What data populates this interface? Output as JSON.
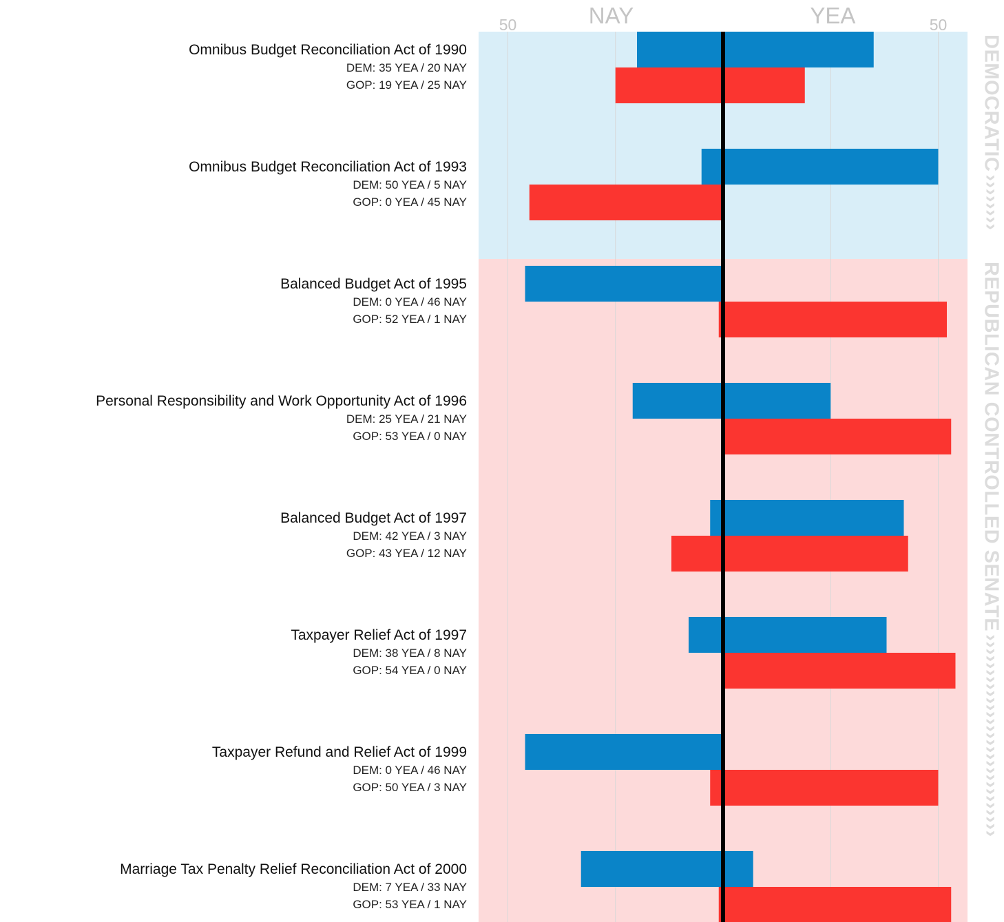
{
  "colors": {
    "dem_bar": "#0a84c8",
    "gop_bar": "#fb3530",
    "dem_controlled_bg": "#d9eef8",
    "gop_controlled_bg": "#fddada",
    "midline": "#000000",
    "gridline": "#d8d8d8",
    "muted_text": "#c4c4c4"
  },
  "chart_data": {
    "type": "bar",
    "orientation": "horizontal-diverging",
    "axis_words": {
      "left": "NAY",
      "right": "YEA"
    },
    "ticks": {
      "nay": [
        "50"
      ],
      "yea": [
        "50"
      ]
    },
    "xlim": [
      -55,
      55
    ],
    "grid": true,
    "control_periods": [
      {
        "label": "DEMOCRATIC",
        "party": "dem",
        "bills": [
          0,
          1
        ]
      },
      {
        "label": "REPUBLICAN CONTROLLED SENATE",
        "party": "gop",
        "bills": [
          2,
          3,
          4,
          5,
          6,
          7
        ]
      }
    ],
    "bills": [
      {
        "title": "Omnibus Budget Reconciliation Act of 1990",
        "dem_text": "DEM: 35 YEA / 20 NAY",
        "gop_text": "GOP: 19 YEA / 25 NAY",
        "dem": {
          "yea": 35,
          "nay": 20
        },
        "gop": {
          "yea": 19,
          "nay": 25
        }
      },
      {
        "title": "Omnibus Budget Reconciliation Act of 1993",
        "dem_text": "DEM: 50 YEA / 5 NAY",
        "gop_text": "GOP: 0 YEA / 45 NAY",
        "dem": {
          "yea": 50,
          "nay": 5
        },
        "gop": {
          "yea": 0,
          "nay": 45
        }
      },
      {
        "title": "Balanced Budget Act of 1995",
        "dem_text": "DEM: 0 YEA / 46 NAY",
        "gop_text": "GOP: 52 YEA / 1 NAY",
        "dem": {
          "yea": 0,
          "nay": 46
        },
        "gop": {
          "yea": 52,
          "nay": 1
        }
      },
      {
        "title": "Personal Responsibility and Work Opportunity Act of 1996",
        "dem_text": "DEM: 25 YEA / 21 NAY",
        "gop_text": "GOP: 53 YEA / 0 NAY",
        "dem": {
          "yea": 25,
          "nay": 21
        },
        "gop": {
          "yea": 53,
          "nay": 0
        }
      },
      {
        "title": "Balanced Budget Act of 1997",
        "dem_text": "DEM: 42 YEA / 3 NAY",
        "gop_text": "GOP: 43 YEA / 12 NAY",
        "dem": {
          "yea": 42,
          "nay": 3
        },
        "gop": {
          "yea": 43,
          "nay": 12
        }
      },
      {
        "title": "Taxpayer Relief Act of 1997",
        "dem_text": "DEM: 38 YEA / 8 NAY",
        "gop_text": "GOP: 54 YEA / 0 NAY",
        "dem": {
          "yea": 38,
          "nay": 8
        },
        "gop": {
          "yea": 54,
          "nay": 0
        }
      },
      {
        "title": "Taxpayer Refund and Relief Act of 1999",
        "dem_text": "DEM: 0 YEA / 46 NAY",
        "gop_text": "GOP: 50 YEA / 3 NAY",
        "dem": {
          "yea": 0,
          "nay": 46
        },
        "gop": {
          "yea": 50,
          "nay": 3
        }
      },
      {
        "title": "Marriage Tax Penalty Relief Reconciliation Act of 2000",
        "dem_text": "DEM: 7 YEA / 33 NAY",
        "gop_text": "GOP: 53 YEA / 1 NAY",
        "dem": {
          "yea": 7,
          "nay": 33
        },
        "gop": {
          "yea": 53,
          "nay": 1
        }
      }
    ]
  }
}
